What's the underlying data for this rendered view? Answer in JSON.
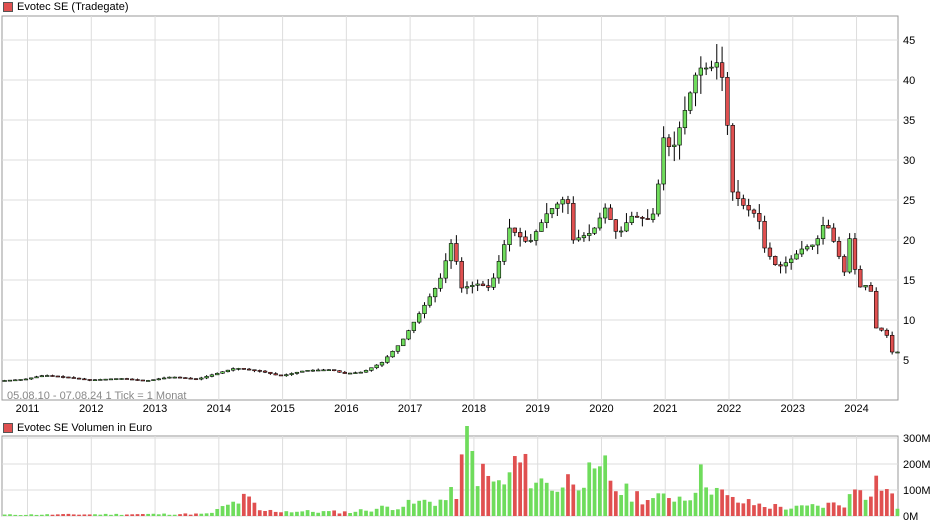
{
  "price_title": "Evotec SE (Tradegate)",
  "volume_title": "Evotec SE Volumen in Euro",
  "range_note": "05.08.10 - 07.08.24   1 Tick = 1 Monat",
  "colors": {
    "up": "#6fdc5c",
    "down": "#e05050",
    "grid": "#dddddd",
    "axis": "#999999",
    "swatch": "#e05050"
  },
  "chart_data": [
    {
      "type": "candlestick",
      "title": "Evotec SE (Tradegate)",
      "x_tick_labels": [
        "2011",
        "2012",
        "2013",
        "2014",
        "2015",
        "2016",
        "2017",
        "2018",
        "2019",
        "2020",
        "2021",
        "2022",
        "2023",
        "2024"
      ],
      "y_tick_labels": [
        "5",
        "10",
        "15",
        "20",
        "25",
        "30",
        "35",
        "40",
        "45"
      ],
      "ylim": [
        0,
        48
      ],
      "xlim": [
        2010.6,
        2024.65
      ],
      "grid": true,
      "monthly_close_anchors": [
        [
          2010.6,
          2.4
        ],
        [
          2011.0,
          2.6
        ],
        [
          2011.3,
          3.1
        ],
        [
          2011.7,
          2.8
        ],
        [
          2012.0,
          2.5
        ],
        [
          2012.5,
          2.7
        ],
        [
          2012.9,
          2.4
        ],
        [
          2013.3,
          2.9
        ],
        [
          2013.7,
          2.6
        ],
        [
          2014.0,
          3.3
        ],
        [
          2014.3,
          4.0
        ],
        [
          2014.7,
          3.6
        ],
        [
          2015.0,
          3.0
        ],
        [
          2015.4,
          3.7
        ],
        [
          2015.8,
          3.8
        ],
        [
          2016.0,
          3.3
        ],
        [
          2016.3,
          3.5
        ],
        [
          2016.6,
          4.7
        ],
        [
          2016.9,
          7.2
        ],
        [
          2017.2,
          11.0
        ],
        [
          2017.5,
          14.8
        ],
        [
          2017.7,
          20.0
        ],
        [
          2017.85,
          14.0
        ],
        [
          2018.1,
          14.5
        ],
        [
          2018.3,
          14.0
        ],
        [
          2018.6,
          21.5
        ],
        [
          2018.9,
          19.5
        ],
        [
          2019.2,
          23.5
        ],
        [
          2019.5,
          25.5
        ],
        [
          2019.6,
          20.0
        ],
        [
          2019.9,
          21.0
        ],
        [
          2020.1,
          24.0
        ],
        [
          2020.3,
          20.5
        ],
        [
          2020.5,
          23.0
        ],
        [
          2020.8,
          22.5
        ],
        [
          2020.9,
          24.0
        ],
        [
          2021.0,
          33.0
        ],
        [
          2021.15,
          31.0
        ],
        [
          2021.4,
          37.5
        ],
        [
          2021.55,
          41.5
        ],
        [
          2021.75,
          41.5
        ],
        [
          2021.9,
          42.5
        ],
        [
          2022.0,
          36.0
        ],
        [
          2022.1,
          26.0
        ],
        [
          2022.3,
          24.0
        ],
        [
          2022.5,
          23.0
        ],
        [
          2022.6,
          19.0
        ],
        [
          2022.8,
          16.5
        ],
        [
          2023.0,
          17.5
        ],
        [
          2023.2,
          19.0
        ],
        [
          2023.4,
          19.5
        ],
        [
          2023.55,
          22.5
        ],
        [
          2023.7,
          19.5
        ],
        [
          2023.85,
          16.0
        ],
        [
          2023.95,
          21.0
        ],
        [
          2024.05,
          14.0
        ],
        [
          2024.25,
          14.5
        ],
        [
          2024.35,
          9.0
        ],
        [
          2024.5,
          8.5
        ],
        [
          2024.6,
          6.0
        ]
      ],
      "series": [
        {
          "name": "Evotec SE (Tradegate)",
          "unit": "EUR"
        }
      ]
    },
    {
      "type": "bar",
      "title": "Evotec SE Volumen in Euro",
      "y_tick_labels": [
        "0M",
        "100M",
        "200M",
        "300M"
      ],
      "ylim": [
        0,
        300
      ],
      "unit": "M EUR",
      "monthly_volume_anchors": [
        [
          2010.6,
          5
        ],
        [
          2013.8,
          8
        ],
        [
          2014.1,
          40
        ],
        [
          2014.4,
          70
        ],
        [
          2014.6,
          20
        ],
        [
          2016.0,
          15
        ],
        [
          2016.8,
          40
        ],
        [
          2017.2,
          55
        ],
        [
          2017.5,
          60
        ],
        [
          2017.7,
          100
        ],
        [
          2017.85,
          290
        ],
        [
          2018.0,
          175
        ],
        [
          2018.3,
          120
        ],
        [
          2018.5,
          130
        ],
        [
          2018.6,
          215
        ],
        [
          2018.8,
          170
        ],
        [
          2019.0,
          130
        ],
        [
          2019.3,
          110
        ],
        [
          2019.5,
          150
        ],
        [
          2019.7,
          160
        ],
        [
          2019.9,
          130
        ],
        [
          2020.0,
          190
        ],
        [
          2020.2,
          100
        ],
        [
          2020.5,
          80
        ],
        [
          2020.8,
          60
        ],
        [
          2021.0,
          80
        ],
        [
          2021.3,
          70
        ],
        [
          2021.5,
          150
        ],
        [
          2021.6,
          150
        ],
        [
          2021.8,
          90
        ],
        [
          2022.0,
          60
        ],
        [
          2022.5,
          40
        ],
        [
          2023.0,
          30
        ],
        [
          2023.4,
          40
        ],
        [
          2023.8,
          50
        ],
        [
          2024.0,
          130
        ],
        [
          2024.1,
          90
        ],
        [
          2024.3,
          145
        ],
        [
          2024.5,
          80
        ],
        [
          2024.6,
          30
        ]
      ],
      "series": [
        {
          "name": "Evotec SE Volumen in Euro"
        }
      ]
    }
  ]
}
